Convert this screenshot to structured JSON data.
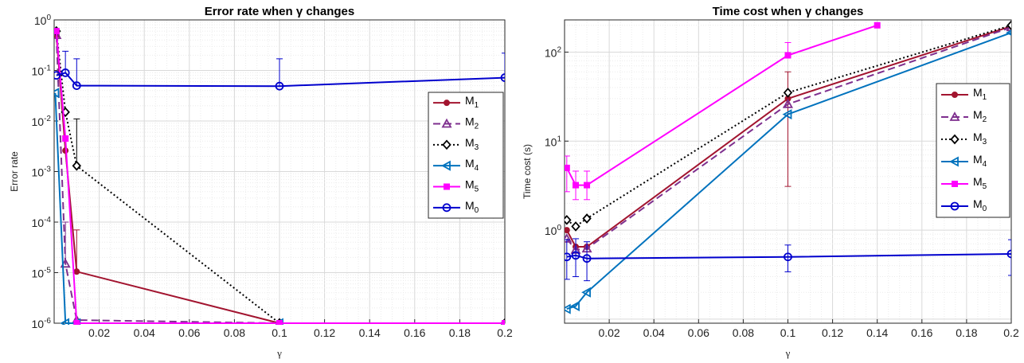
{
  "chart_data": [
    {
      "type": "line",
      "title": "Error rate when γ changes",
      "xlabel": "γ",
      "ylabel": "Error rate",
      "yscale": "log",
      "xlim": [
        0,
        0.2
      ],
      "ylim": [
        1e-06,
        1
      ],
      "grid": true,
      "legend_position": "right",
      "xticks": [
        "0.02",
        "0.04",
        "0.06",
        "0.08",
        "0.1",
        "0.12",
        "0.14",
        "0.16",
        "0.18",
        "0.2"
      ],
      "yticks": [
        "10-6",
        "10-5",
        "10-4",
        "10-3",
        "10-2",
        "10-1",
        "100"
      ],
      "series": [
        {
          "name": "M1",
          "color": "#a2142f",
          "marker": "circle",
          "dash": "solid",
          "x": [
            0.001,
            0.005,
            0.01,
            0.1,
            0.2
          ],
          "y": [
            0.5,
            0.0026,
            1.05e-05,
            1e-06,
            1e-06
          ],
          "err_top": [
            null,
            null,
            7e-05,
            null,
            null
          ]
        },
        {
          "name": "M2",
          "color": "#7e2f8e",
          "marker": "triangle",
          "dash": "dash",
          "x": [
            0.001,
            0.005,
            0.01,
            0.1,
            0.2
          ],
          "y": [
            0.5,
            1.5e-05,
            1.15e-06,
            1e-06,
            1e-06
          ],
          "err_top": [
            null,
            0.0001,
            null,
            null,
            null
          ]
        },
        {
          "name": "M3",
          "color": "#000000",
          "marker": "diamond",
          "dash": "dot",
          "x": [
            0.001,
            0.005,
            0.01,
            0.1,
            0.2
          ],
          "y": [
            0.6,
            0.015,
            0.0013,
            1e-06,
            1e-06
          ],
          "err_top": [
            null,
            null,
            0.011,
            null,
            null
          ]
        },
        {
          "name": "M4",
          "color": "#0072bd",
          "marker": "triangle-left",
          "dash": "solid",
          "x": [
            0.0005,
            0.005,
            0.01,
            0.1,
            0.2
          ],
          "y": [
            0.036,
            1e-06,
            1e-06,
            1e-06,
            1e-06
          ],
          "err_top": [
            null,
            null,
            null,
            null,
            null
          ]
        },
        {
          "name": "M5",
          "color": "#ff00ff",
          "marker": "square",
          "dash": "solid",
          "x": [
            0.001,
            0.005,
            0.01,
            0.1,
            0.2
          ],
          "y": [
            0.6,
            0.0045,
            1e-06,
            1e-06,
            1e-06
          ],
          "err_top": [
            null,
            null,
            null,
            null,
            null
          ]
        },
        {
          "name": "M0",
          "color": "#0000cd",
          "marker": "circle-open",
          "dash": "solid",
          "x": [
            0.001,
            0.005,
            0.01,
            0.1,
            0.2
          ],
          "y": [
            0.08,
            0.09,
            0.05,
            0.049,
            0.072
          ],
          "err_top": [
            null,
            0.24,
            0.17,
            0.17,
            0.22
          ]
        }
      ]
    },
    {
      "type": "line",
      "title": "Time cost when γ changes",
      "xlabel": "γ",
      "ylabel": "Time cost (s)",
      "yscale": "log",
      "xlim": [
        0,
        0.2
      ],
      "ylim": [
        0.1,
        200
      ],
      "grid": true,
      "legend_position": "right",
      "xticks": [
        "0.02",
        "0.04",
        "0.06",
        "0.08",
        "0.1",
        "0.12",
        "0.14",
        "0.16",
        "0.18",
        "0.2"
      ],
      "yticks": [
        "100",
        "101",
        "102"
      ],
      "series": [
        {
          "name": "M1",
          "color": "#a2142f",
          "marker": "circle",
          "dash": "solid",
          "x": [
            0.001,
            0.005,
            0.01,
            0.1,
            0.2
          ],
          "y": [
            1.0,
            0.65,
            0.65,
            30,
            195
          ],
          "err_top": [
            null,
            null,
            null,
            60,
            null
          ],
          "err_bot": [
            null,
            null,
            null,
            3.1,
            null
          ]
        },
        {
          "name": "M2",
          "color": "#7e2f8e",
          "marker": "triangle",
          "dash": "dash",
          "x": [
            0.001,
            0.005,
            0.01,
            0.1,
            0.2
          ],
          "y": [
            0.8,
            0.6,
            0.62,
            26,
            190
          ]
        },
        {
          "name": "M3",
          "color": "#000000",
          "marker": "diamond",
          "dash": "dot",
          "x": [
            0.001,
            0.005,
            0.01,
            0.1,
            0.2
          ],
          "y": [
            1.3,
            1.1,
            1.35,
            35,
            200
          ]
        },
        {
          "name": "M4",
          "color": "#0072bd",
          "marker": "triangle-left",
          "dash": "solid",
          "x": [
            0.001,
            0.005,
            0.01,
            0.1,
            0.2
          ],
          "y": [
            0.13,
            0.14,
            0.2,
            20,
            165
          ]
        },
        {
          "name": "M5",
          "color": "#ff00ff",
          "marker": "square",
          "dash": "solid",
          "x": [
            0.001,
            0.005,
            0.01,
            0.1,
            0.14
          ],
          "y": [
            5.0,
            3.2,
            3.2,
            92,
            200
          ],
          "err_top": [
            6.8,
            4.6,
            4.6,
            128,
            null
          ],
          "err_bot": [
            2.7,
            2.2,
            2.2,
            null,
            null
          ]
        },
        {
          "name": "M0",
          "color": "#0000cd",
          "marker": "circle-open",
          "dash": "solid",
          "x": [
            0.001,
            0.005,
            0.01,
            0.1,
            0.2
          ],
          "y": [
            0.5,
            0.52,
            0.48,
            0.5,
            0.54
          ],
          "err_top": [
            0.78,
            0.8,
            0.74,
            0.68,
            0.78
          ],
          "err_bot": [
            0.28,
            0.3,
            0.27,
            0.34,
            0.31
          ]
        }
      ]
    }
  ]
}
